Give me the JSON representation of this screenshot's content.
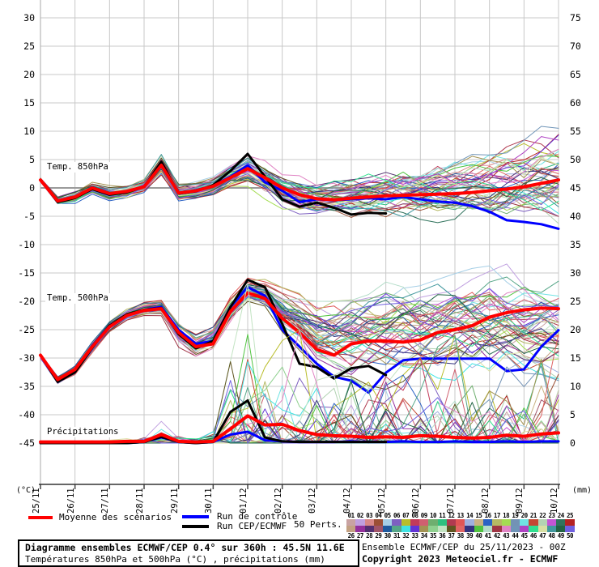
{
  "axes": {
    "left_unit": "(°C)",
    "right_unit": "(mm)",
    "left_ticks": [
      "30",
      "25",
      "20",
      "15",
      "10",
      "5",
      "0",
      "-5",
      "-10",
      "-15",
      "-20",
      "-25",
      "-30",
      "-35",
      "-40",
      "-45"
    ],
    "right_ticks": [
      "75",
      "70",
      "65",
      "60",
      "55",
      "50",
      "45",
      "40",
      "35",
      "30",
      "25",
      "20",
      "15",
      "10",
      "5",
      "0"
    ]
  },
  "legend": {
    "mean_label": "Moyenne des scénarios",
    "control_label": "Run de contrôle",
    "cep_label": "Run CEP/ECMWF",
    "perts_label": "50 Perts.",
    "mean_color": "#ff0000",
    "control_color": "#0000ff",
    "cep_color": "#000000"
  },
  "members": [
    {
      "n": "01",
      "color": "#c9a3a3"
    },
    {
      "n": "02",
      "color": "#c0a0e0"
    },
    {
      "n": "03",
      "color": "#d88888"
    },
    {
      "n": "04",
      "color": "#9b4f35"
    },
    {
      "n": "05",
      "color": "#a6cfe6"
    },
    {
      "n": "06",
      "color": "#7d5fc0"
    },
    {
      "n": "07",
      "color": "#b9bd2a"
    },
    {
      "n": "08",
      "color": "#c23a5a"
    },
    {
      "n": "09",
      "color": "#d06070"
    },
    {
      "n": "10",
      "color": "#6fae6f"
    },
    {
      "n": "11",
      "color": "#2fbf7f"
    },
    {
      "n": "12",
      "color": "#b03a50"
    },
    {
      "n": "13",
      "color": "#e05555"
    },
    {
      "n": "14",
      "color": "#9fb0df"
    },
    {
      "n": "15",
      "color": "#c9b283"
    },
    {
      "n": "16",
      "color": "#2b62c4"
    },
    {
      "n": "17",
      "color": "#b5b964"
    },
    {
      "n": "18",
      "color": "#a4dc52"
    },
    {
      "n": "19",
      "color": "#7392b5"
    },
    {
      "n": "20",
      "color": "#6fe3e3"
    },
    {
      "n": "21",
      "color": "#c44833"
    },
    {
      "n": "22",
      "color": "#b3d3b3"
    },
    {
      "n": "23",
      "color": "#c455d4"
    },
    {
      "n": "24",
      "color": "#31735d"
    },
    {
      "n": "25",
      "color": "#b52222"
    },
    {
      "n": "26",
      "color": "#c3a183"
    },
    {
      "n": "27",
      "color": "#94309c"
    },
    {
      "n": "28",
      "color": "#533071"
    },
    {
      "n": "29",
      "color": "#a05468"
    },
    {
      "n": "30",
      "color": "#1f5a9e"
    },
    {
      "n": "31",
      "color": "#55a687"
    },
    {
      "n": "32",
      "color": "#3fe3e3"
    },
    {
      "n": "33",
      "color": "#6233d6"
    },
    {
      "n": "34",
      "color": "#a39353"
    },
    {
      "n": "35",
      "color": "#8fd08f"
    },
    {
      "n": "36",
      "color": "#c2e3c2"
    },
    {
      "n": "37",
      "color": "#5f5520"
    },
    {
      "n": "38",
      "color": "#e06464"
    },
    {
      "n": "39",
      "color": "#32327f"
    },
    {
      "n": "40",
      "color": "#4fc43f"
    },
    {
      "n": "41",
      "color": "#b3dcc8"
    },
    {
      "n": "42",
      "color": "#a03444"
    },
    {
      "n": "43",
      "color": "#e083c4"
    },
    {
      "n": "44",
      "color": "#7095b8"
    },
    {
      "n": "45",
      "color": "#b043c4"
    },
    {
      "n": "46",
      "color": "#2fe08f"
    },
    {
      "n": "47",
      "color": "#d8e0a3"
    },
    {
      "n": "48",
      "color": "#42989e"
    },
    {
      "n": "49",
      "color": "#226444"
    },
    {
      "n": "50",
      "color": "#7060e0"
    }
  ],
  "footer": {
    "title": "Diagramme ensembles ECMWF/CEP 0.4° sur 360h : 45.5N 11.6E",
    "subtitle": "Températures 850hPa et 500hPa (°C) , précipitations (mm)",
    "run": "Ensemble ECMWF/CEP du 25/11/2023 - 00Z",
    "copyright": "Copyright 2023 Meteociel.fr - ECMWF"
  },
  "chart_data": {
    "type": "line",
    "title": "Diagramme ensembles ECMWF/CEP 0.4° sur 360h : 45.5N 11.6E",
    "x_hours_step": 12,
    "x_hours_max": 360,
    "x_labels": [
      "25/11",
      "26/11",
      "27/11",
      "28/11",
      "29/11",
      "30/11",
      "01/12",
      "02/12",
      "03/12",
      "04/12",
      "05/12",
      "06/12",
      "07/12",
      "08/12",
      "09/12",
      "10/12"
    ],
    "ylim_temp": [
      -45,
      30
    ],
    "ylim_precip": [
      0,
      75
    ],
    "grid": true,
    "legend_position": "bottom",
    "bands": {
      "t850": {
        "label": "Temp. 850hPa",
        "mean": [
          1.4,
          -2.3,
          -1.6,
          0.0,
          -1.0,
          -0.6,
          0.2,
          4.0,
          -0.9,
          -0.5,
          0.3,
          1.8,
          3.4,
          1.8,
          0.0,
          -1.2,
          -1.9,
          -2.1,
          -1.8,
          -1.6,
          -1.4,
          -1.3,
          -1.2,
          -1.1,
          -1.0,
          -0.8,
          -0.5,
          -0.2,
          0.2,
          0.8,
          1.4
        ],
        "control": [
          1.4,
          -2.4,
          -1.7,
          0.1,
          -1.1,
          -0.7,
          0.3,
          4.2,
          -1.0,
          -0.4,
          0.4,
          2.0,
          4.0,
          1.0,
          -0.5,
          -2.5,
          -2.0,
          -2.2,
          -2.0,
          -1.8,
          -2.0,
          -1.6,
          -2.0,
          -2.4,
          -2.6,
          -3.2,
          -4.2,
          -5.7,
          -6.0,
          -6.4,
          -7.2
        ],
        "cep": [
          1.4,
          -2.5,
          -1.8,
          -0.2,
          -1.2,
          -0.8,
          0.2,
          4.6,
          -1.0,
          -0.6,
          0.5,
          3.0,
          6.0,
          2.0,
          -2.0,
          -3.3,
          -2.6,
          -3.5,
          -4.7,
          -4.4,
          -4.5
        ],
        "env_lo": [
          0.8,
          -3.4,
          -3.0,
          -1.3,
          -2.4,
          -2.0,
          -1.3,
          1.8,
          -2.8,
          -2.2,
          -1.6,
          -0.2,
          0.0,
          -2.0,
          -4.5,
          -5.5,
          -6.0,
          -6.0,
          -6.5,
          -6.5,
          -7.0,
          -7.0,
          -7.5,
          -7.5,
          -8.0,
          -8.0,
          -8.5,
          -8.5,
          -9.0,
          -9.0,
          -9.5
        ],
        "env_hi": [
          2.0,
          -1.2,
          -0.4,
          1.0,
          0.3,
          0.6,
          2.0,
          6.2,
          1.0,
          1.2,
          2.2,
          4.5,
          7.0,
          5.5,
          4.0,
          3.0,
          2.8,
          3.2,
          3.6,
          4.2,
          4.8,
          5.4,
          6.0,
          6.6,
          7.4,
          8.2,
          9.0,
          9.8,
          10.6,
          11.4,
          12.0
        ]
      },
      "t500": {
        "label": "Temp. 500hPa",
        "mean": [
          -29.5,
          -33.8,
          -32.0,
          -28.0,
          -24.5,
          -22.5,
          -21.6,
          -21.3,
          -25.5,
          -28.0,
          -27.5,
          -21.8,
          -18.5,
          -19.5,
          -23.0,
          -25.5,
          -28.5,
          -29.5,
          -27.5,
          -27.0,
          -27.0,
          -27.2,
          -26.8,
          -25.5,
          -25.0,
          -24.3,
          -22.8,
          -22.0,
          -21.5,
          -21.2,
          -21.3
        ],
        "control": [
          -29.5,
          -34.0,
          -32.2,
          -27.8,
          -24.3,
          -22.4,
          -21.5,
          -21.0,
          -25.0,
          -27.5,
          -27.0,
          -21.0,
          -17.5,
          -19.0,
          -25.0,
          -28.0,
          -31.0,
          -33.3,
          -34.0,
          -36.1,
          -32.6,
          -30.4,
          -30.1,
          -30.1,
          -30.1,
          -30.1,
          -30.1,
          -32.3,
          -32.0,
          -28.0,
          -25.1
        ],
        "cep": [
          -29.5,
          -34.2,
          -32.5,
          -28.2,
          -24.3,
          -22.3,
          -21.5,
          -21.2,
          -25.8,
          -28.3,
          -27.0,
          -21.0,
          -16.2,
          -17.5,
          -24.0,
          -31.0,
          -31.6,
          -33.6,
          -31.8,
          -31.4,
          -33.0
        ],
        "env_lo": [
          -30.5,
          -35.2,
          -33.6,
          -29.4,
          -25.8,
          -23.8,
          -23.0,
          -22.8,
          -28.2,
          -30.5,
          -30.0,
          -25.5,
          -21.5,
          -22.5,
          -27.0,
          -30.0,
          -33.0,
          -35.0,
          -36.0,
          -36.0,
          -36.5,
          -36.0,
          -36.5,
          -36.5,
          -36.0,
          -36.0,
          -36.5,
          -36.5,
          -37.0,
          -36.5,
          -36.0
        ],
        "env_hi": [
          -28.6,
          -32.6,
          -30.6,
          -26.6,
          -23.2,
          -21.2,
          -20.2,
          -19.8,
          -23.5,
          -25.5,
          -23.5,
          -18.5,
          -15.5,
          -15.5,
          -17.0,
          -17.5,
          -19.0,
          -18.0,
          -17.0,
          -16.0,
          -15.5,
          -15.0,
          -14.5,
          -14.5,
          -14.0,
          -14.0,
          -13.5,
          -13.5,
          -14.0,
          -14.0,
          -14.0
        ]
      },
      "precip": {
        "label": "Précipitations",
        "mean": [
          0.2,
          0.2,
          0.2,
          0.2,
          0.2,
          0.3,
          0.3,
          1.5,
          0.3,
          0.2,
          0.3,
          2.5,
          4.8,
          3.2,
          3.3,
          2.2,
          1.5,
          1.3,
          1.2,
          1.0,
          1.1,
          1.0,
          1.3,
          1.2,
          1.0,
          0.9,
          1.0,
          1.4,
          1.2,
          1.6,
          1.8
        ],
        "control": [
          0,
          0,
          0,
          0,
          0,
          0,
          0.2,
          1.0,
          0.2,
          0,
          0.2,
          1.5,
          2.0,
          0.5,
          0.3,
          0.2,
          0.2,
          0.2,
          0.3,
          0.2,
          0.2,
          0.3,
          0.2,
          0.2,
          0.3,
          0.2,
          0.2,
          0.3,
          0.2,
          0.3,
          0.3
        ],
        "cep": [
          0,
          0,
          0,
          0,
          0,
          0,
          0.2,
          1.1,
          0.2,
          0,
          0.2,
          5.5,
          7.5,
          1.0,
          0.3,
          0.2,
          0.2,
          0.2,
          0.2,
          0.2,
          0.2
        ],
        "env_hi": [
          0.5,
          0.5,
          0.5,
          0.5,
          0.5,
          0.8,
          1.5,
          5.0,
          1.5,
          0.8,
          2.0,
          15,
          28,
          26,
          22,
          20,
          14,
          12,
          14,
          12,
          14,
          12,
          15,
          17,
          19,
          15,
          13,
          14,
          12,
          17,
          21
        ]
      }
    }
  }
}
